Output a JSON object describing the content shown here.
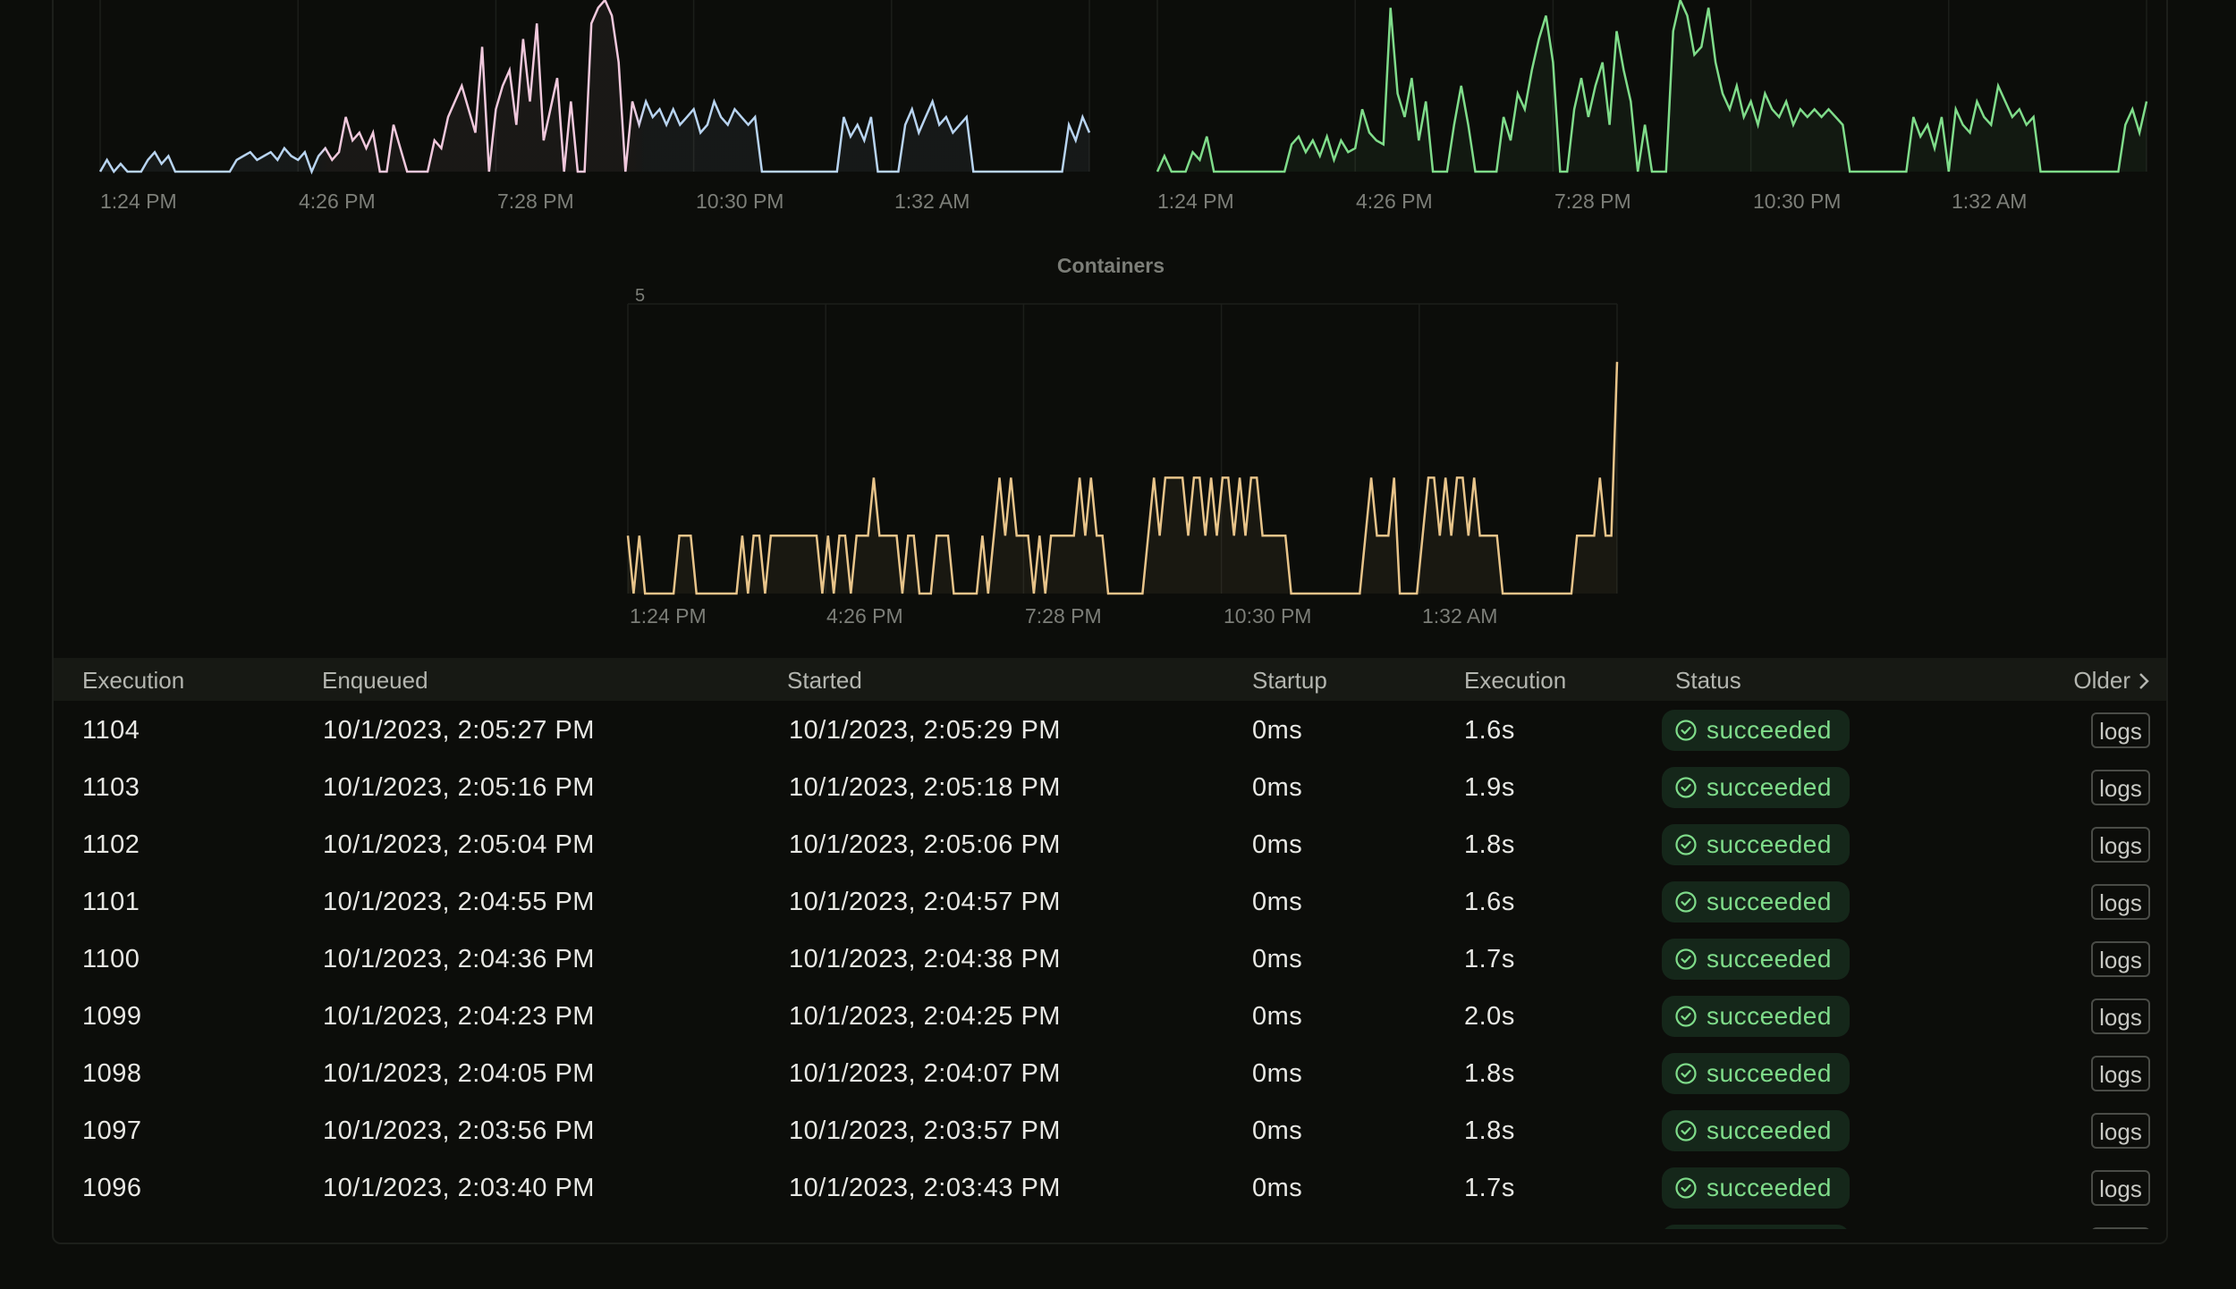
{
  "colors": {
    "background": "#0c0d0a",
    "chart1_series_a": "#b8d4f0",
    "chart1_series_b": "#f0c8dc",
    "chart2_series": "#7fdc8a",
    "containers_series": "#e8c48a",
    "success": "#7fdc8a"
  },
  "chart_data": [
    {
      "type": "line",
      "title": "",
      "x_tick_labels": [
        "1:24 PM",
        "4:26 PM",
        "7:28 PM",
        "10:30 PM",
        "1:32 AM"
      ],
      "series": [
        {
          "values": [
            0,
            0.3,
            0,
            0.2,
            0,
            0,
            0,
            0.3,
            0.5,
            0.2,
            0.4,
            0,
            0,
            0,
            0,
            0,
            0,
            0,
            0,
            0,
            0.3,
            0.4,
            0.5,
            0.3,
            0.4,
            0.5,
            0.3,
            0.6,
            0.4,
            0.3,
            0.5,
            0,
            0.4,
            0.6,
            0.3,
            0.5,
            1.4,
            0.8,
            1.0,
            0.6,
            1.0,
            0,
            0,
            1.2,
            0.6,
            0,
            0,
            0,
            0,
            0.8,
            0.6,
            1.4,
            1.8,
            2.2,
            1.6,
            1.0,
            3.2,
            0,
            1.6,
            2.2,
            2.6,
            1.2,
            3.4,
            1.8,
            3.8,
            0.8,
            1.6,
            2.4,
            0,
            1.8,
            0,
            0,
            3.8,
            4.2,
            4.4,
            4.0,
            2.8,
            0,
            1.8,
            1.2,
            1.8,
            1.4,
            1.6,
            1.2,
            1.6,
            1.2,
            1.4,
            1.6,
            1.0,
            1.2,
            1.8,
            1.4,
            1.2,
            1.6,
            1.4,
            1.2,
            1.4,
            0,
            0,
            0,
            0,
            0,
            0,
            0,
            0,
            0,
            0,
            0,
            0,
            1.4,
            0.9,
            1.2,
            0.8,
            1.4,
            0,
            0,
            0,
            0,
            1.2,
            1.6,
            1.0,
            1.4,
            1.8,
            1.2,
            1.4,
            1.0,
            1.2,
            1.4,
            0,
            0,
            0,
            0,
            0,
            0,
            0,
            0,
            0,
            0,
            0,
            0,
            0,
            0,
            1.2,
            0.8,
            1.4,
            1.0
          ]
        }
      ]
    },
    {
      "type": "line",
      "title": "",
      "x_tick_labels": [
        "1:24 PM",
        "4:26 PM",
        "7:28 PM",
        "10:30 PM",
        "1:32 AM"
      ],
      "series": [
        {
          "values": [
            0,
            0.4,
            0,
            0,
            0,
            0.5,
            0.3,
            0.9,
            0,
            0,
            0,
            0,
            0,
            0,
            0,
            0,
            0,
            0,
            0,
            0.7,
            0.9,
            0.5,
            0.8,
            0.4,
            0.9,
            0.3,
            0.8,
            0.5,
            0.6,
            1.6,
            1.0,
            0.8,
            0.7,
            4.2,
            2.0,
            1.4,
            2.4,
            0.8,
            1.8,
            0,
            0,
            0,
            1.2,
            2.2,
            1.2,
            0,
            0,
            0,
            0,
            1.4,
            0.8,
            2.0,
            1.6,
            2.6,
            3.4,
            4.0,
            2.8,
            0,
            0,
            1.6,
            2.4,
            1.4,
            2.2,
            2.8,
            1.2,
            3.6,
            2.6,
            1.8,
            0,
            1.2,
            0,
            0,
            0,
            3.6,
            4.4,
            4.0,
            3.0,
            3.2,
            4.2,
            2.8,
            2.0,
            1.6,
            2.2,
            1.4,
            1.8,
            1.2,
            2.0,
            1.6,
            1.4,
            1.8,
            1.2,
            1.6,
            1.4,
            1.6,
            1.4,
            1.6,
            1.4,
            1.2,
            0,
            0,
            0,
            0,
            0,
            0,
            0,
            0,
            0,
            1.4,
            0.9,
            1.2,
            0.6,
            1.4,
            0,
            1.6,
            1.2,
            1.0,
            1.8,
            1.4,
            1.2,
            2.2,
            1.8,
            1.4,
            1.6,
            1.2,
            1.4,
            0,
            0,
            0,
            0,
            0,
            0,
            0,
            0,
            0,
            0,
            0,
            0,
            1.2,
            1.6,
            1.0,
            1.8
          ]
        }
      ]
    },
    {
      "type": "line",
      "title": "Containers",
      "ylim": [
        0,
        5
      ],
      "y_tick_labels": [
        "5"
      ],
      "x_tick_labels": [
        "1:24 PM",
        "4:26 PM",
        "7:28 PM",
        "10:30 PM",
        "1:32 AM"
      ],
      "series": [
        {
          "values": [
            1,
            0,
            1,
            0,
            0,
            0,
            0,
            0,
            0,
            1,
            1,
            1,
            0,
            0,
            0,
            0,
            0,
            0,
            0,
            0,
            1,
            0,
            1,
            1,
            0,
            1,
            1,
            1,
            1,
            1,
            1,
            1,
            1,
            1,
            0,
            1,
            0,
            1,
            1,
            0,
            1,
            1,
            1,
            2,
            1,
            1,
            1,
            1,
            0,
            1,
            1,
            0,
            0,
            0,
            1,
            1,
            1,
            0,
            0,
            0,
            0,
            0,
            1,
            0,
            1,
            2,
            1,
            2,
            1,
            1,
            1,
            0,
            1,
            0,
            1,
            1,
            1,
            1,
            1,
            2,
            1,
            2,
            1,
            1,
            0,
            0,
            0,
            0,
            0,
            0,
            0,
            1,
            2,
            1,
            2,
            2,
            2,
            2,
            1,
            2,
            2,
            1,
            2,
            1,
            2,
            2,
            1,
            2,
            1,
            2,
            2,
            1,
            1,
            1,
            1,
            1,
            0,
            0,
            0,
            0,
            0,
            0,
            0,
            0,
            0,
            0,
            0,
            0,
            0,
            1,
            2,
            1,
            1,
            1,
            2,
            0,
            0,
            0,
            0,
            1,
            2,
            2,
            1,
            2,
            1,
            2,
            2,
            1,
            2,
            1,
            1,
            1,
            1,
            0,
            0,
            0,
            0,
            0,
            0,
            0,
            0,
            0,
            0,
            0,
            0,
            0,
            1,
            1,
            1,
            1,
            2,
            1,
            1,
            4
          ]
        }
      ]
    }
  ],
  "table": {
    "headers": {
      "execution": "Execution",
      "enqueued": "Enqueued",
      "started": "Started",
      "startup": "Startup",
      "execution_time": "Execution",
      "status": "Status",
      "older": "Older"
    },
    "rows": [
      {
        "id": "1104",
        "enqueued": "10/1/2023, 2:05:27 PM",
        "started": "10/1/2023, 2:05:29 PM",
        "startup": "0ms",
        "execution": "1.6s",
        "status": "succeeded",
        "logs": "logs"
      },
      {
        "id": "1103",
        "enqueued": "10/1/2023, 2:05:16 PM",
        "started": "10/1/2023, 2:05:18 PM",
        "startup": "0ms",
        "execution": "1.9s",
        "status": "succeeded",
        "logs": "logs"
      },
      {
        "id": "1102",
        "enqueued": "10/1/2023, 2:05:04 PM",
        "started": "10/1/2023, 2:05:06 PM",
        "startup": "0ms",
        "execution": "1.8s",
        "status": "succeeded",
        "logs": "logs"
      },
      {
        "id": "1101",
        "enqueued": "10/1/2023, 2:04:55 PM",
        "started": "10/1/2023, 2:04:57 PM",
        "startup": "0ms",
        "execution": "1.6s",
        "status": "succeeded",
        "logs": "logs"
      },
      {
        "id": "1100",
        "enqueued": "10/1/2023, 2:04:36 PM",
        "started": "10/1/2023, 2:04:38 PM",
        "startup": "0ms",
        "execution": "1.7s",
        "status": "succeeded",
        "logs": "logs"
      },
      {
        "id": "1099",
        "enqueued": "10/1/2023, 2:04:23 PM",
        "started": "10/1/2023, 2:04:25 PM",
        "startup": "0ms",
        "execution": "2.0s",
        "status": "succeeded",
        "logs": "logs"
      },
      {
        "id": "1098",
        "enqueued": "10/1/2023, 2:04:05 PM",
        "started": "10/1/2023, 2:04:07 PM",
        "startup": "0ms",
        "execution": "1.8s",
        "status": "succeeded",
        "logs": "logs"
      },
      {
        "id": "1097",
        "enqueued": "10/1/2023, 2:03:56 PM",
        "started": "10/1/2023, 2:03:57 PM",
        "startup": "0ms",
        "execution": "1.8s",
        "status": "succeeded",
        "logs": "logs"
      },
      {
        "id": "1096",
        "enqueued": "10/1/2023, 2:03:40 PM",
        "started": "10/1/2023, 2:03:43 PM",
        "startup": "0ms",
        "execution": "1.7s",
        "status": "succeeded",
        "logs": "logs"
      },
      {
        "id": "",
        "enqueued": "",
        "started": "",
        "startup": "",
        "execution": "",
        "status": "",
        "logs": ""
      }
    ]
  }
}
